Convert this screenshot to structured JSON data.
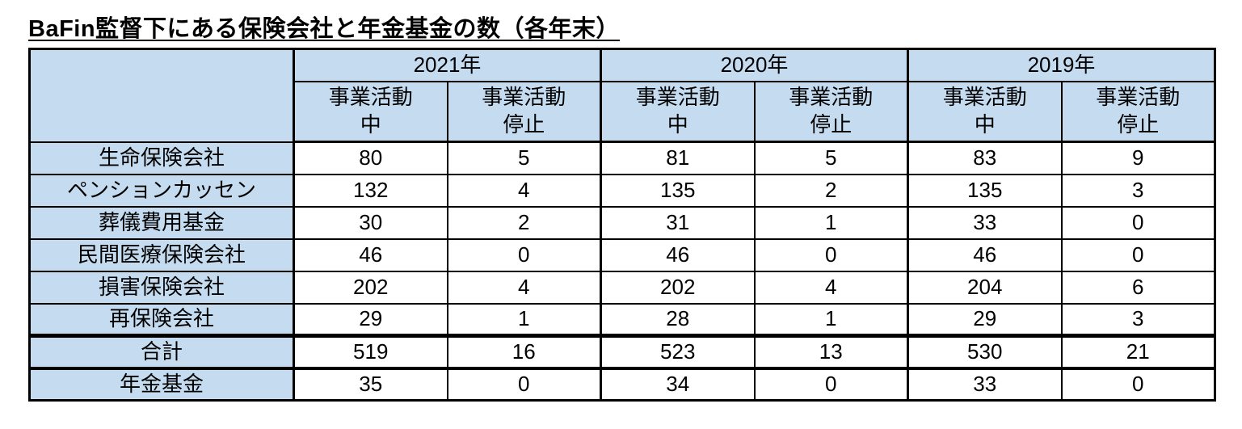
{
  "title": "BaFin監督下にある保険会社と年金基金の数（各年末）",
  "colors": {
    "header_fill": "#C5DCF0",
    "cell_fill": "#FFFFFF",
    "border": "#000000",
    "title_text": "#000000"
  },
  "chart_data": {
    "type": "table",
    "title": "BaFin監督下にある保険会社と年金基金の数（各年末）",
    "year_groups": [
      "2021年",
      "2020年",
      "2019年"
    ],
    "sub_columns": [
      "事業活動中",
      "事業活動停止"
    ],
    "columns": [
      "2021年 事業活動中",
      "2021年 事業活動停止",
      "2020年 事業活動中",
      "2020年 事業活動停止",
      "2019年 事業活動中",
      "2019年 事業活動停止"
    ],
    "rows": [
      {
        "label": "生命保険会社",
        "values": [
          "80",
          "5",
          "81",
          "5",
          "83",
          "9"
        ]
      },
      {
        "label": "ペンションカッセン",
        "values": [
          "132",
          "4",
          "135",
          "2",
          "135",
          "3"
        ]
      },
      {
        "label": "葬儀費用基金",
        "values": [
          "30",
          "2",
          "31",
          "1",
          "33",
          "0"
        ]
      },
      {
        "label": "民間医療保険会社",
        "values": [
          "46",
          "0",
          "46",
          "0",
          "46",
          "0"
        ]
      },
      {
        "label": "損害保険会社",
        "values": [
          "202",
          "4",
          "202",
          "4",
          "204",
          "6"
        ]
      },
      {
        "label": "再保険会社",
        "values": [
          "29",
          "1",
          "28",
          "1",
          "29",
          "3"
        ]
      },
      {
        "label": "合計",
        "values": [
          "519",
          "16",
          "523",
          "13",
          "530",
          "21"
        ]
      },
      {
        "label": "年金基金",
        "values": [
          "35",
          "0",
          "34",
          "0",
          "33",
          "0"
        ]
      }
    ]
  }
}
